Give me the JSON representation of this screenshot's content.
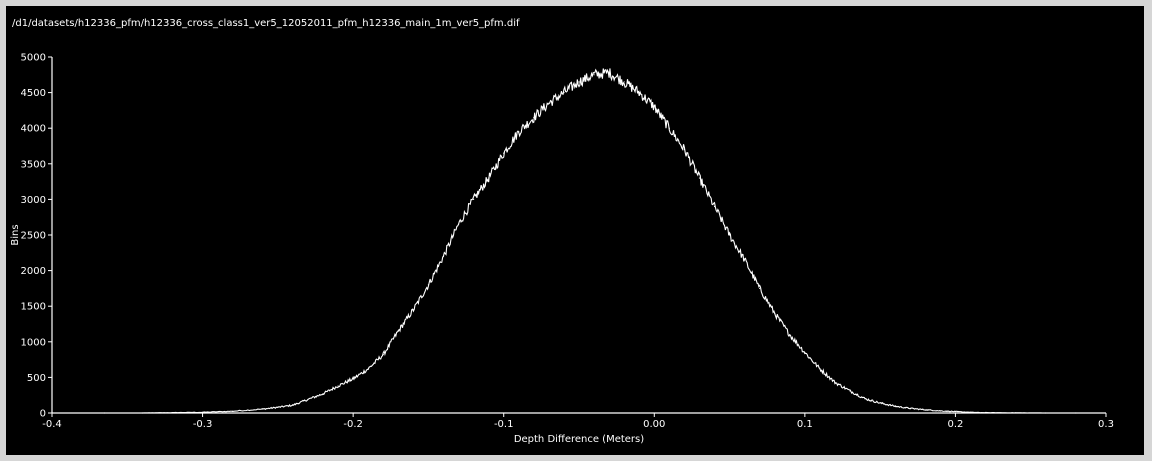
{
  "file_path": "/d1/datasets/h12336_pfm/h12336_cross_class1_ver5_12052011_pfm_h12336_main_1m_ver5_pfm.dif",
  "colors": {
    "background": "#000000",
    "foreground": "#ffffff",
    "frame": "#d6d6d6"
  },
  "chart_data": {
    "type": "line",
    "title": "",
    "xlabel": "Depth Difference (Meters)",
    "ylabel": "Bins",
    "xlim": [
      -0.4,
      0.3
    ],
    "ylim": [
      0,
      5000
    ],
    "x_ticks": [
      -0.4,
      -0.3,
      -0.2,
      -0.1,
      0.0,
      0.1,
      0.2,
      0.3
    ],
    "x_tick_labels": [
      "-0.4",
      "-0.3",
      "-0.2",
      "-0.1",
      "0.00",
      "0.1",
      "0.2",
      "0.3"
    ],
    "y_ticks": [
      0,
      500,
      1000,
      1500,
      2000,
      2500,
      3000,
      3500,
      4000,
      4500,
      5000
    ],
    "y_tick_labels": [
      "0",
      "500",
      "1000",
      "1500",
      "2000",
      "2500",
      "3000",
      "3500",
      "4000",
      "4500",
      "5000"
    ],
    "grid": false,
    "series": [
      {
        "color": "#ffffff",
        "x": [
          -0.365,
          -0.34,
          -0.32,
          -0.3,
          -0.28,
          -0.26,
          -0.25,
          -0.24,
          -0.23,
          -0.22,
          -0.21,
          -0.2,
          -0.19,
          -0.18,
          -0.17,
          -0.16,
          -0.15,
          -0.14,
          -0.13,
          -0.12,
          -0.11,
          -0.1,
          -0.09,
          -0.08,
          -0.07,
          -0.06,
          -0.05,
          -0.04,
          -0.03,
          -0.02,
          -0.01,
          0.0,
          0.01,
          0.02,
          0.03,
          0.04,
          0.05,
          0.06,
          0.07,
          0.08,
          0.09,
          0.1,
          0.11,
          0.12,
          0.13,
          0.14,
          0.15,
          0.16,
          0.17,
          0.18,
          0.19,
          0.2,
          0.21,
          0.22,
          0.24,
          0.26,
          0.28
        ],
        "y": [
          0,
          0,
          5,
          10,
          25,
          55,
          80,
          110,
          190,
          270,
          380,
          480,
          620,
          820,
          1150,
          1450,
          1800,
          2200,
          2650,
          3000,
          3300,
          3650,
          3950,
          4150,
          4350,
          4500,
          4650,
          4750,
          4780,
          4650,
          4500,
          4300,
          4000,
          3700,
          3300,
          2900,
          2500,
          2150,
          1750,
          1400,
          1100,
          850,
          620,
          430,
          310,
          200,
          140,
          95,
          65,
          45,
          30,
          20,
          10,
          5,
          2,
          0,
          0
        ]
      }
    ]
  }
}
